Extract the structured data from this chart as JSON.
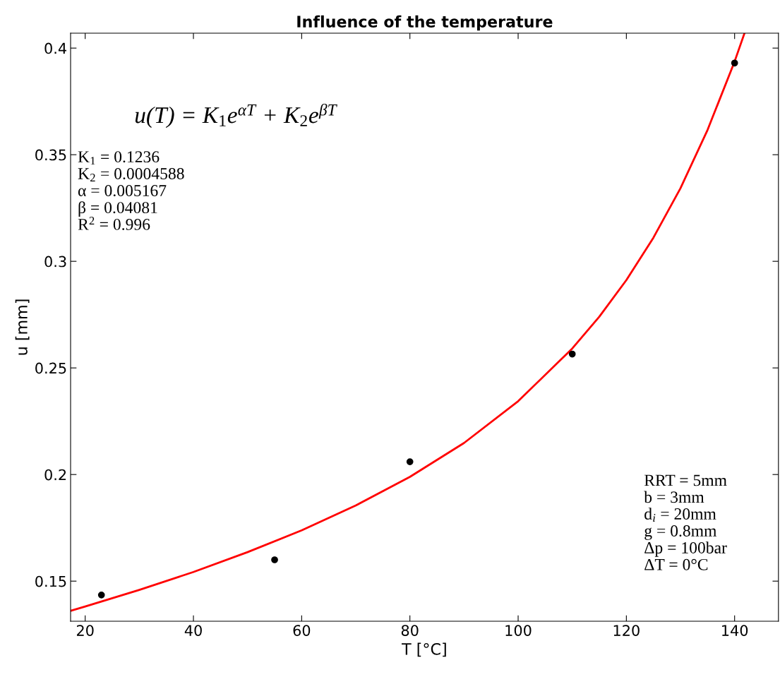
{
  "chart_data": {
    "type": "scatter",
    "title": "Influence of the temperature",
    "xlabel": "T [°C]",
    "ylabel": "u [mm]",
    "xlim": [
      17.3,
      148.1
    ],
    "ylim": [
      0.1312,
      0.407
    ],
    "xticks": [
      20,
      40,
      60,
      80,
      100,
      120,
      140
    ],
    "yticks": [
      0.15,
      0.2,
      0.25,
      0.3,
      0.35,
      0.4
    ],
    "grid": false,
    "legend": false,
    "marker": "circle",
    "series": [
      {
        "color": "#000000",
        "x": [
          23,
          55,
          80,
          110,
          140
        ],
        "values": [
          0.1435,
          0.16,
          0.206,
          0.2565,
          0.393
        ]
      },
      {
        "type": "line",
        "color": "#ff0000",
        "line_style": "solid",
        "marker": "none",
        "x": [
          17.3,
          20,
          30,
          40,
          50,
          60,
          70,
          80,
          90,
          100,
          110,
          115,
          120,
          125,
          130,
          135,
          140,
          141.8
        ],
        "values": [
          0.1361,
          0.1381,
          0.1459,
          0.1543,
          0.1636,
          0.1738,
          0.1855,
          0.1989,
          0.2148,
          0.2344,
          0.2591,
          0.274,
          0.2912,
          0.3111,
          0.3343,
          0.3616,
          0.3937,
          0.4068
        ]
      }
    ],
    "annotations": [
      "u(T) = K$_{1}$e$^{αT}$ + K$_{2}$e$^{βT}$",
      "K$_{1}$ = 0.1236\nK$_{2}$ = 0.0004588\nα = 0.005167\nβ = 0.04081\nR$^{2}$ = 0.996",
      "RRT = 5mm\nb = 3mm\nd$_{i}$ = 20mm\ng = 0.8mm\nΔp = 100bar\nΔT = 0°C"
    ]
  }
}
